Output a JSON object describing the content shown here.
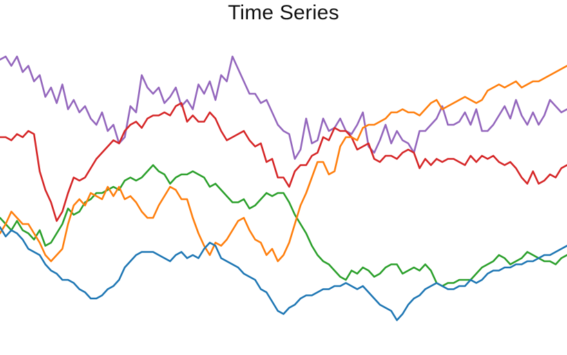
{
  "chart_data": {
    "type": "line",
    "title": "Time Series",
    "xlabel": "",
    "ylabel": "",
    "grid": false,
    "legend": "none",
    "x_range": [
      0,
      100
    ],
    "ylim": [
      0,
      100
    ],
    "series": [
      {
        "color": "#9467bd",
        "values": [
          93,
          94,
          91,
          94,
          89,
          91,
          86,
          88,
          81,
          84,
          79,
          85,
          77,
          80,
          76,
          78,
          74,
          72,
          76,
          70,
          72,
          66,
          68,
          78,
          76,
          88,
          84,
          82,
          84,
          79,
          81,
          84,
          78,
          80,
          77,
          85,
          82,
          86,
          80,
          88,
          86,
          94,
          90,
          86,
          82,
          82,
          79,
          80,
          76,
          72,
          70,
          69,
          61,
          64,
          74,
          66,
          67,
          74,
          70,
          71,
          74,
          70,
          69,
          72,
          76,
          65,
          63,
          67,
          72,
          66,
          70,
          67,
          66,
          63,
          70,
          70,
          72,
          74,
          78,
          72,
          72,
          73,
          76,
          72,
          77,
          70,
          70,
          72,
          75,
          78,
          74,
          80,
          75,
          72,
          76,
          72,
          75,
          80,
          78,
          76,
          77
        ]
      },
      {
        "color": "#d62728",
        "values": [
          68,
          68,
          67,
          69,
          68,
          70,
          69,
          57,
          51,
          47,
          41,
          44,
          50,
          55,
          54,
          55,
          58,
          61,
          63,
          65,
          67,
          66,
          70,
          72,
          73,
          71,
          74,
          75,
          75,
          76,
          75,
          78,
          79,
          73,
          75,
          73,
          73,
          76,
          74,
          70,
          67,
          68,
          69,
          70,
          67,
          65,
          66,
          60,
          61,
          55,
          55,
          52,
          57,
          59,
          59,
          62,
          63,
          68,
          67,
          71,
          70,
          70,
          68,
          64,
          65,
          66,
          61,
          60,
          62,
          62,
          61,
          63,
          64,
          63,
          58,
          61,
          59,
          61,
          60,
          61,
          61,
          60,
          59,
          62,
          60,
          62,
          61,
          62,
          60,
          59,
          60,
          58,
          55,
          53,
          57,
          53,
          54,
          56,
          55,
          58,
          59
        ]
      },
      {
        "color": "#2ca02c",
        "values": [
          42,
          40,
          38,
          41,
          38,
          37,
          35,
          38,
          33,
          34,
          37,
          40,
          45,
          43,
          44,
          47,
          48,
          50,
          50,
          51,
          52,
          51,
          54,
          55,
          54,
          55,
          57,
          59,
          57,
          56,
          53,
          55,
          56,
          56,
          57,
          56,
          55,
          52,
          53,
          51,
          49,
          47,
          47,
          48,
          45,
          46,
          48,
          50,
          49,
          50,
          50,
          47,
          43,
          40,
          37,
          33,
          30,
          28,
          27,
          25,
          23,
          22,
          25,
          24,
          26,
          25,
          23,
          24,
          26,
          27,
          27,
          24,
          25,
          26,
          25,
          27,
          25,
          21,
          20,
          21,
          21,
          22,
          22,
          22,
          24,
          26,
          27,
          28,
          30,
          29,
          27,
          28,
          29,
          31,
          30,
          29,
          28,
          28,
          27,
          29,
          30
        ]
      },
      {
        "color": "#ff7f0e",
        "values": [
          37,
          40,
          44,
          42,
          40,
          40,
          37,
          34,
          30,
          28,
          30,
          32,
          40,
          46,
          48,
          46,
          50,
          49,
          48,
          52,
          49,
          52,
          48,
          49,
          47,
          44,
          42,
          42,
          46,
          49,
          52,
          51,
          48,
          48,
          42,
          37,
          33,
          30,
          34,
          33,
          35,
          38,
          41,
          42,
          38,
          35,
          34,
          30,
          32,
          28,
          30,
          34,
          40,
          46,
          50,
          55,
          60,
          60,
          56,
          57,
          65,
          68,
          68,
          67,
          71,
          72,
          72,
          73,
          74,
          76,
          76,
          77,
          76,
          76,
          75,
          77,
          79,
          80,
          77,
          78,
          79,
          80,
          81,
          80,
          79,
          80,
          83,
          84,
          85,
          84,
          85,
          86,
          84,
          85,
          86,
          86,
          87,
          88,
          89,
          90,
          91
        ]
      },
      {
        "color": "#1f77b4",
        "values": [
          39,
          36,
          38,
          37,
          35,
          32,
          31,
          30,
          27,
          25,
          24,
          22,
          22,
          21,
          19,
          18,
          16,
          16,
          17,
          19,
          20,
          22,
          26,
          28,
          30,
          31,
          31,
          31,
          30,
          29,
          28,
          30,
          31,
          29,
          30,
          29,
          32,
          34,
          33,
          29,
          28,
          27,
          26,
          24,
          23,
          22,
          19,
          18,
          15,
          12,
          11,
          13,
          14,
          16,
          17,
          17,
          18,
          19,
          19,
          20,
          20,
          21,
          20,
          19,
          20,
          18,
          16,
          14,
          13,
          12,
          9,
          11,
          14,
          16,
          17,
          19,
          20,
          21,
          20,
          19,
          19,
          20,
          20,
          22,
          21,
          22,
          24,
          25,
          25,
          26,
          26,
          27,
          27,
          28,
          28,
          29,
          30,
          30,
          31,
          32,
          33
        ]
      }
    ]
  }
}
